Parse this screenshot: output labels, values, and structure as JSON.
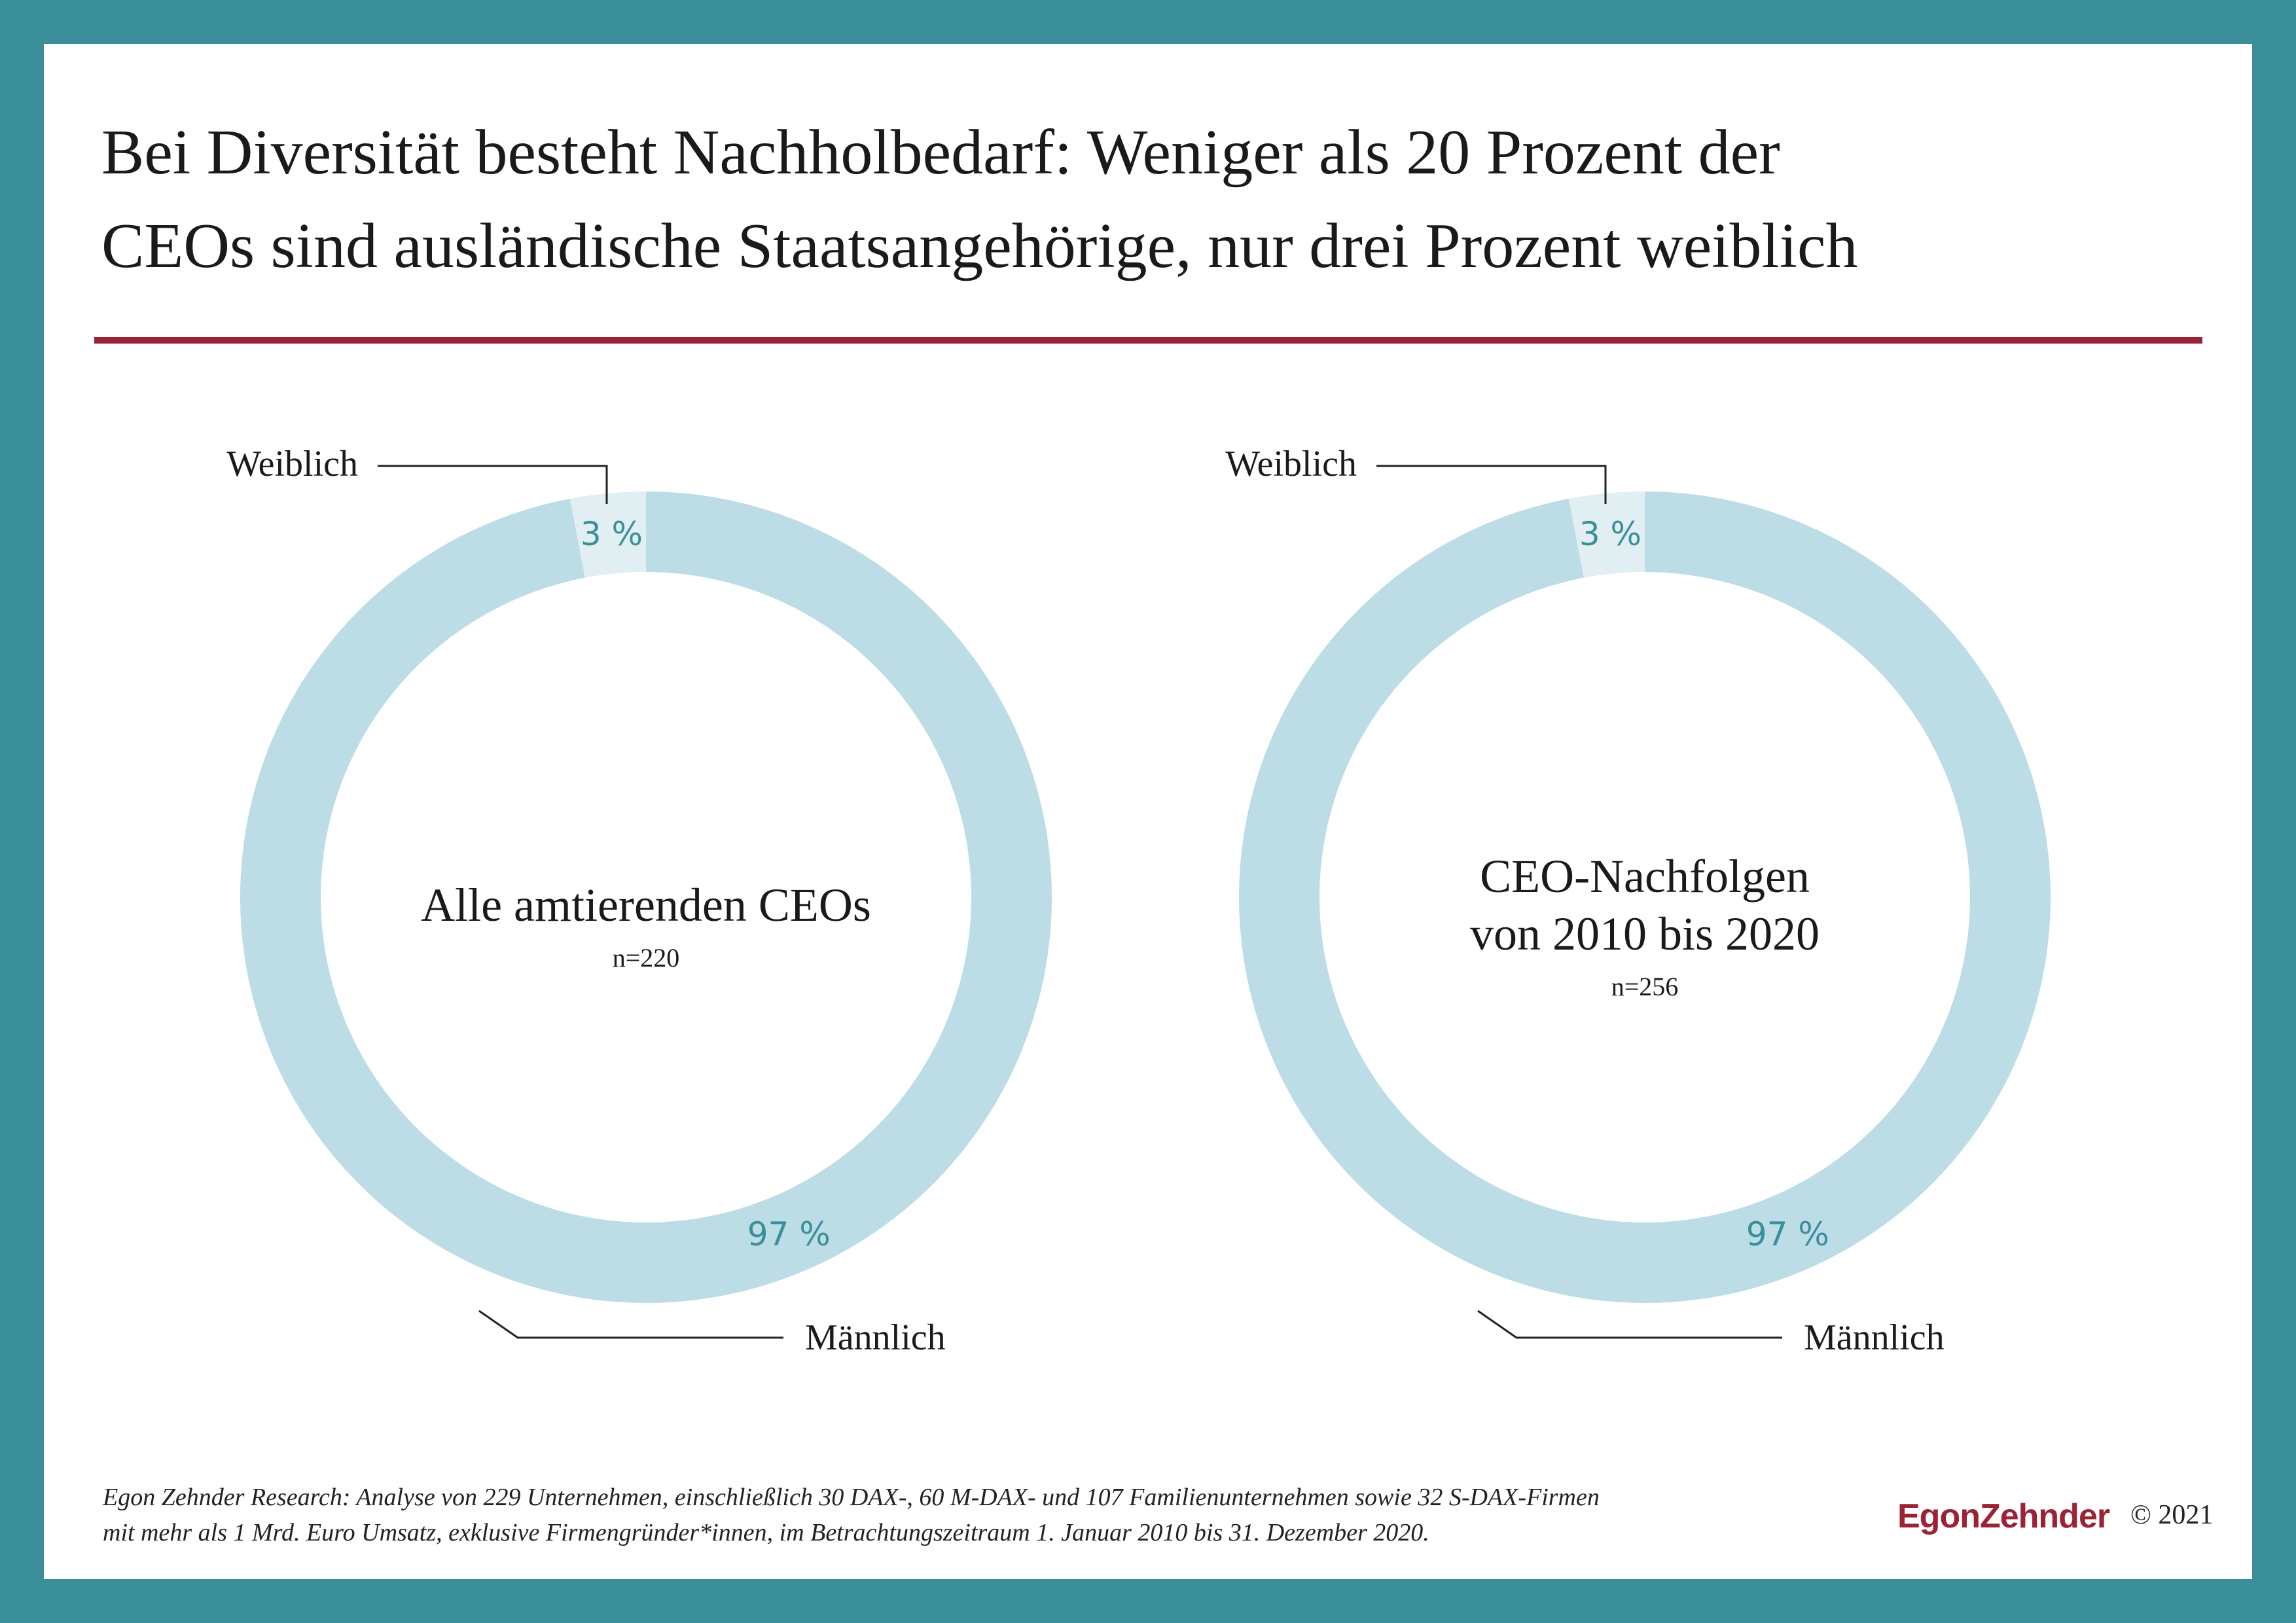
{
  "title_lines": [
    "Bei Diversität besteht Nachholbedarf: Weniger als 20 Prozent der",
    "CEOs sind ausländische Staatsangehörige, nur drei Prozent weiblich"
  ],
  "colors": {
    "border": "#3a8f9b",
    "rule": "#9b2335",
    "male_segment": "#bcdce6",
    "female_segment": "#e1eff3",
    "percent_text": "#3a8f9b"
  },
  "chart_data": [
    {
      "type": "pie",
      "variant": "donut",
      "center_title": [
        "Alle amtierenden CEOs"
      ],
      "n_label": "n=220",
      "slices": [
        {
          "label": "Weiblich",
          "value": 3,
          "display": "3 %"
        },
        {
          "label": "Männlich",
          "value": 97,
          "display": "97 %"
        }
      ]
    },
    {
      "type": "pie",
      "variant": "donut",
      "center_title": [
        "CEO-Nachfolgen",
        "von 2010 bis 2020"
      ],
      "n_label": "n=256",
      "slices": [
        {
          "label": "Weiblich",
          "value": 3,
          "display": "3 %"
        },
        {
          "label": "Männlich",
          "value": 97,
          "display": "97 %"
        }
      ]
    }
  ],
  "footnote_lines": [
    "Egon Zehnder Research: Analyse von 229 Unternehmen, einschließlich 30 DAX-, 60 M-DAX- und 107 Familienunternehmen sowie 32 S-DAX-Firmen",
    "mit mehr als 1 Mrd. Euro Umsatz, exklusive Firmengründer*innen, im Betrachtungszeitraum 1. Januar 2010 bis 31. Dezember 2020."
  ],
  "brand": "EgonZehnder",
  "copyright": "© 2021"
}
